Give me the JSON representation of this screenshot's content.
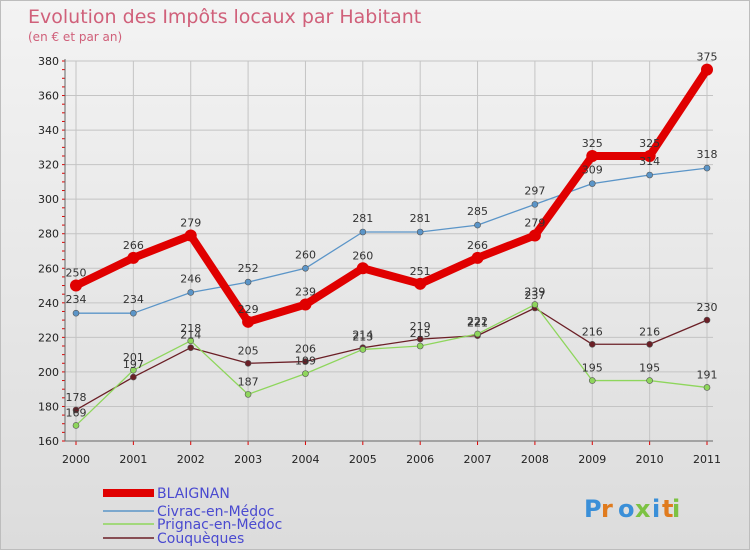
{
  "chart_data": {
    "type": "line",
    "title": "Evolution des Impôts locaux par Habitant",
    "subtitle": "(en € et par an)",
    "x": [
      "2000",
      "2001",
      "2002",
      "2003",
      "2004",
      "2005",
      "2006",
      "2007",
      "2008",
      "2009",
      "2010",
      "2011"
    ],
    "ylim": [
      160,
      380
    ],
    "yticks": [
      160,
      180,
      200,
      220,
      240,
      260,
      280,
      300,
      320,
      340,
      360,
      380
    ],
    "grid": true,
    "legend_position": "bottom-left",
    "series": [
      {
        "name": "BLAIGNAN",
        "color": "#e00000",
        "values": [
          250,
          266,
          279,
          229,
          239,
          260,
          251,
          266,
          279,
          325,
          325,
          375
        ]
      },
      {
        "name": "Civrac-en-Médoc",
        "color": "#5b95c8",
        "values": [
          234,
          234,
          246,
          252,
          260,
          281,
          281,
          285,
          297,
          309,
          314,
          318
        ]
      },
      {
        "name": "Prignac-en-Médoc",
        "color": "#8ed65c",
        "values": [
          169,
          201,
          218,
          187,
          199,
          213,
          215,
          222,
          239,
          195,
          195,
          191
        ]
      },
      {
        "name": "Couquèques",
        "color": "#6b1f26",
        "values": [
          178,
          197,
          214,
          205,
          206,
          214,
          219,
          221,
          237,
          216,
          216,
          230
        ]
      }
    ]
  },
  "logo": {
    "text": "Proxiti"
  }
}
